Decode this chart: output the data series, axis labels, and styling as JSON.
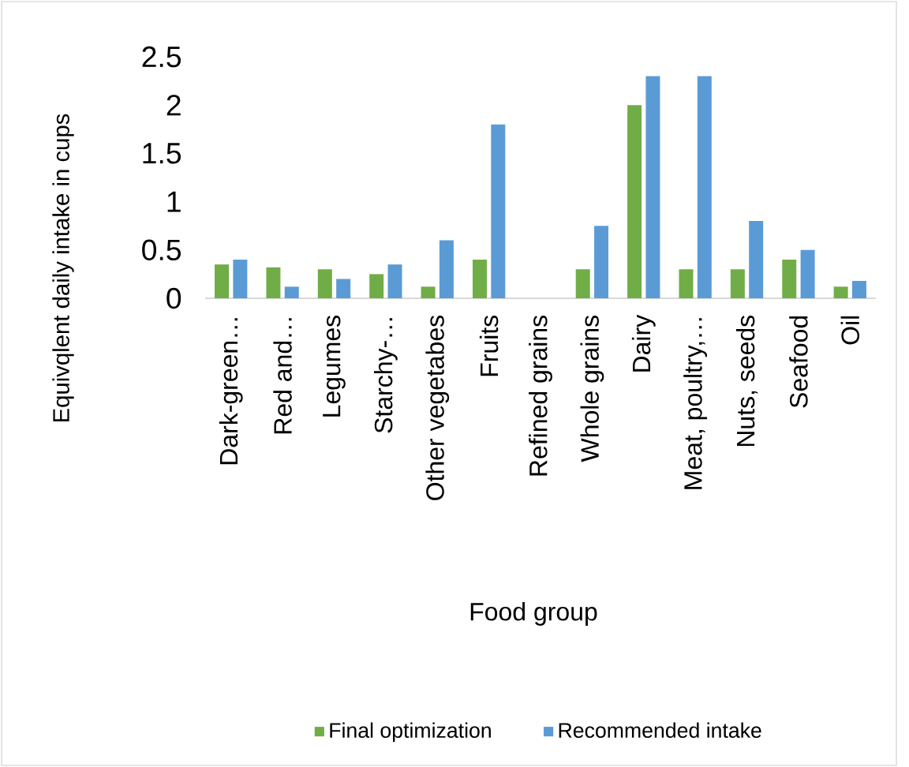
{
  "chart_data": {
    "type": "bar",
    "xlabel": "Food group",
    "ylabel": "Equivqlent daily intake in cups",
    "categories": [
      "Dark-green…",
      "Red and…",
      "Legumes",
      "Starchy-…",
      "Other vegetabes",
      "Fruits",
      "Refined grains",
      "Whole grains",
      "Dairy",
      "Meat, poultry,…",
      "Nuts, seeds",
      "Seafood",
      "Oil"
    ],
    "series": [
      {
        "name": "Final optimization",
        "color": "#70ad47",
        "values": [
          0.35,
          0.32,
          0.3,
          0.25,
          0.12,
          0.4,
          0,
          0.3,
          2.0,
          0.3,
          0.3,
          0.4,
          0.12
        ]
      },
      {
        "name": "Recommended intake",
        "color": "#5b9bd5",
        "values": [
          0.4,
          0.12,
          0.2,
          0.35,
          0.6,
          1.8,
          0,
          0.75,
          2.3,
          2.3,
          0.8,
          0.5,
          0.18
        ]
      }
    ],
    "ylim": [
      0,
      2.5
    ],
    "yticks": [
      0,
      0.5,
      1,
      1.5,
      2,
      2.5
    ],
    "legend": "bottom"
  }
}
